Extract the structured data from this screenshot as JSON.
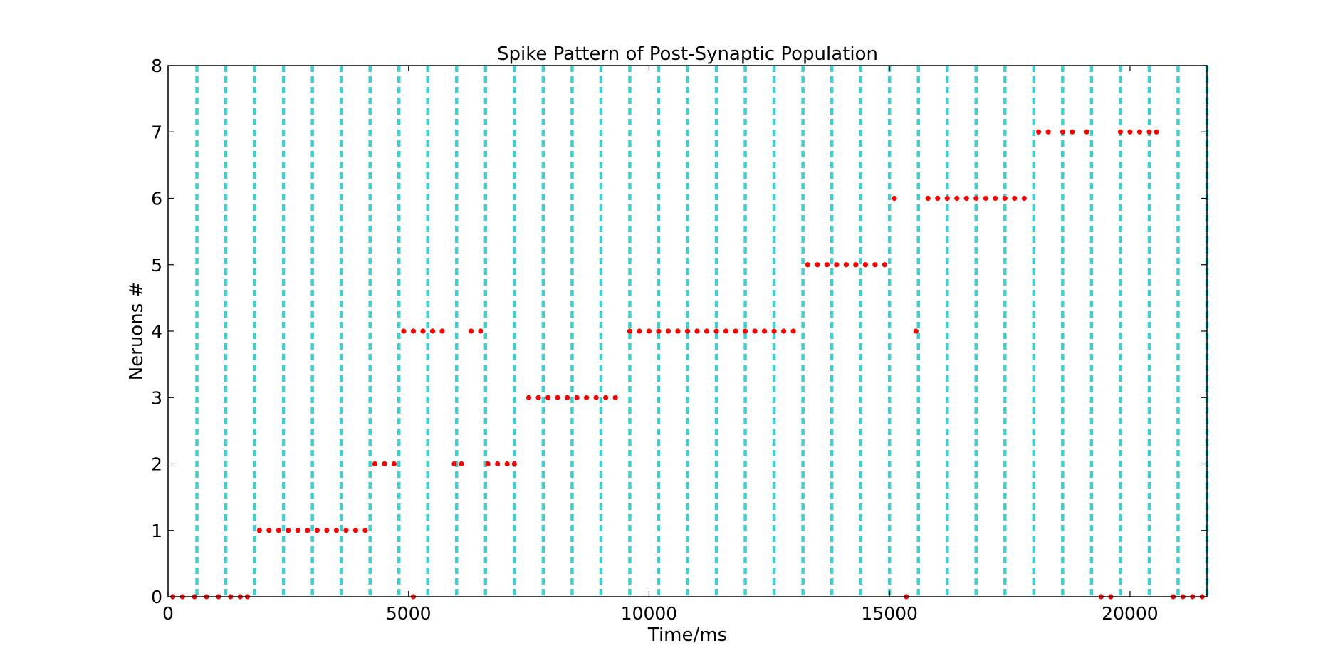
{
  "chart_data": {
    "type": "scatter",
    "title": "Spike Pattern of Post-Synaptic Population",
    "xlabel": "Time/ms",
    "ylabel": "Neruons #",
    "xlim": [
      0,
      21600
    ],
    "ylim": [
      0,
      8
    ],
    "x_ticks": [
      0,
      5000,
      10000,
      15000,
      20000
    ],
    "y_ticks": [
      0,
      1,
      2,
      3,
      4,
      5,
      6,
      7,
      8
    ],
    "grid": false,
    "legend": "none",
    "colors": {
      "spikes": "#ff0000",
      "markers": "#3ecfcf",
      "axes": "#000000"
    },
    "vertical_markers_x": [
      600,
      1200,
      1800,
      2400,
      3000,
      3600,
      4200,
      4800,
      5400,
      6000,
      6600,
      7200,
      7800,
      8400,
      9000,
      9600,
      10200,
      10800,
      11400,
      12000,
      12600,
      13200,
      13800,
      14400,
      15000,
      15600,
      16200,
      16800,
      17400,
      18000,
      18600,
      19200,
      19800,
      20400,
      21000,
      21600
    ],
    "spikes": [
      {
        "neuron": 0,
        "times": [
          100,
          300,
          550,
          800,
          1050,
          1300,
          1500,
          1650,
          5100,
          15350,
          19400,
          19600,
          20900,
          21100,
          21300,
          21500
        ]
      },
      {
        "neuron": 1,
        "times": [
          1900,
          2100,
          2300,
          2500,
          2700,
          2900,
          3100,
          3300,
          3500,
          3700,
          3900,
          4100
        ]
      },
      {
        "neuron": 2,
        "times": [
          4300,
          4500,
          4700,
          5950,
          6100,
          6650,
          6850,
          7050,
          7200
        ]
      },
      {
        "neuron": 3,
        "times": [
          7500,
          7700,
          7900,
          8100,
          8300,
          8500,
          8700,
          8900,
          9100,
          9300
        ]
      },
      {
        "neuron": 4,
        "times": [
          4900,
          5100,
          5300,
          5500,
          5700,
          6300,
          6500,
          9600,
          9800,
          10000,
          10200,
          10400,
          10600,
          10800,
          11000,
          11200,
          11400,
          11600,
          11800,
          12000,
          12200,
          12400,
          12600,
          12800,
          13000,
          15550
        ]
      },
      {
        "neuron": 5,
        "times": [
          13300,
          13500,
          13700,
          13900,
          14100,
          14300,
          14500,
          14700,
          14900
        ]
      },
      {
        "neuron": 6,
        "times": [
          15100,
          15800,
          16000,
          16200,
          16400,
          16600,
          16800,
          17000,
          17200,
          17400,
          17600,
          17800
        ]
      },
      {
        "neuron": 7,
        "times": [
          18100,
          18300,
          18600,
          18800,
          19100,
          19800,
          20000,
          20200,
          20400,
          20550
        ]
      }
    ]
  }
}
